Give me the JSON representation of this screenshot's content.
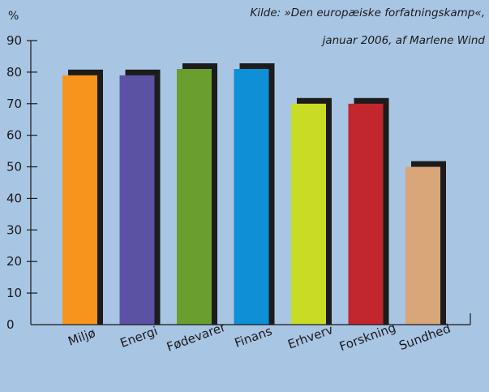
{
  "chart_data": {
    "type": "bar",
    "unit_label": "%",
    "source_note": [
      "Kilde: »Den europæiske forfatningskamp«,",
      "januar 2006, af Marlene Wind"
    ],
    "categories": [
      "Miljø",
      "Energi",
      "Fødevarer",
      "Finans",
      "Erhverv",
      "Forskning",
      "Sundhed"
    ],
    "values": [
      79,
      79,
      81,
      81,
      70,
      70,
      50
    ],
    "colors": [
      "#f7941d",
      "#5b52a3",
      "#6a9e2f",
      "#0e8fd6",
      "#c9dc25",
      "#c1272d",
      "#d8a679"
    ],
    "shadow_color": "#1c1c1c",
    "ylim": [
      0,
      90
    ],
    "yticks": [
      0,
      10,
      20,
      30,
      40,
      50,
      60,
      70,
      80,
      90
    ],
    "grid": false,
    "legend": "none"
  }
}
